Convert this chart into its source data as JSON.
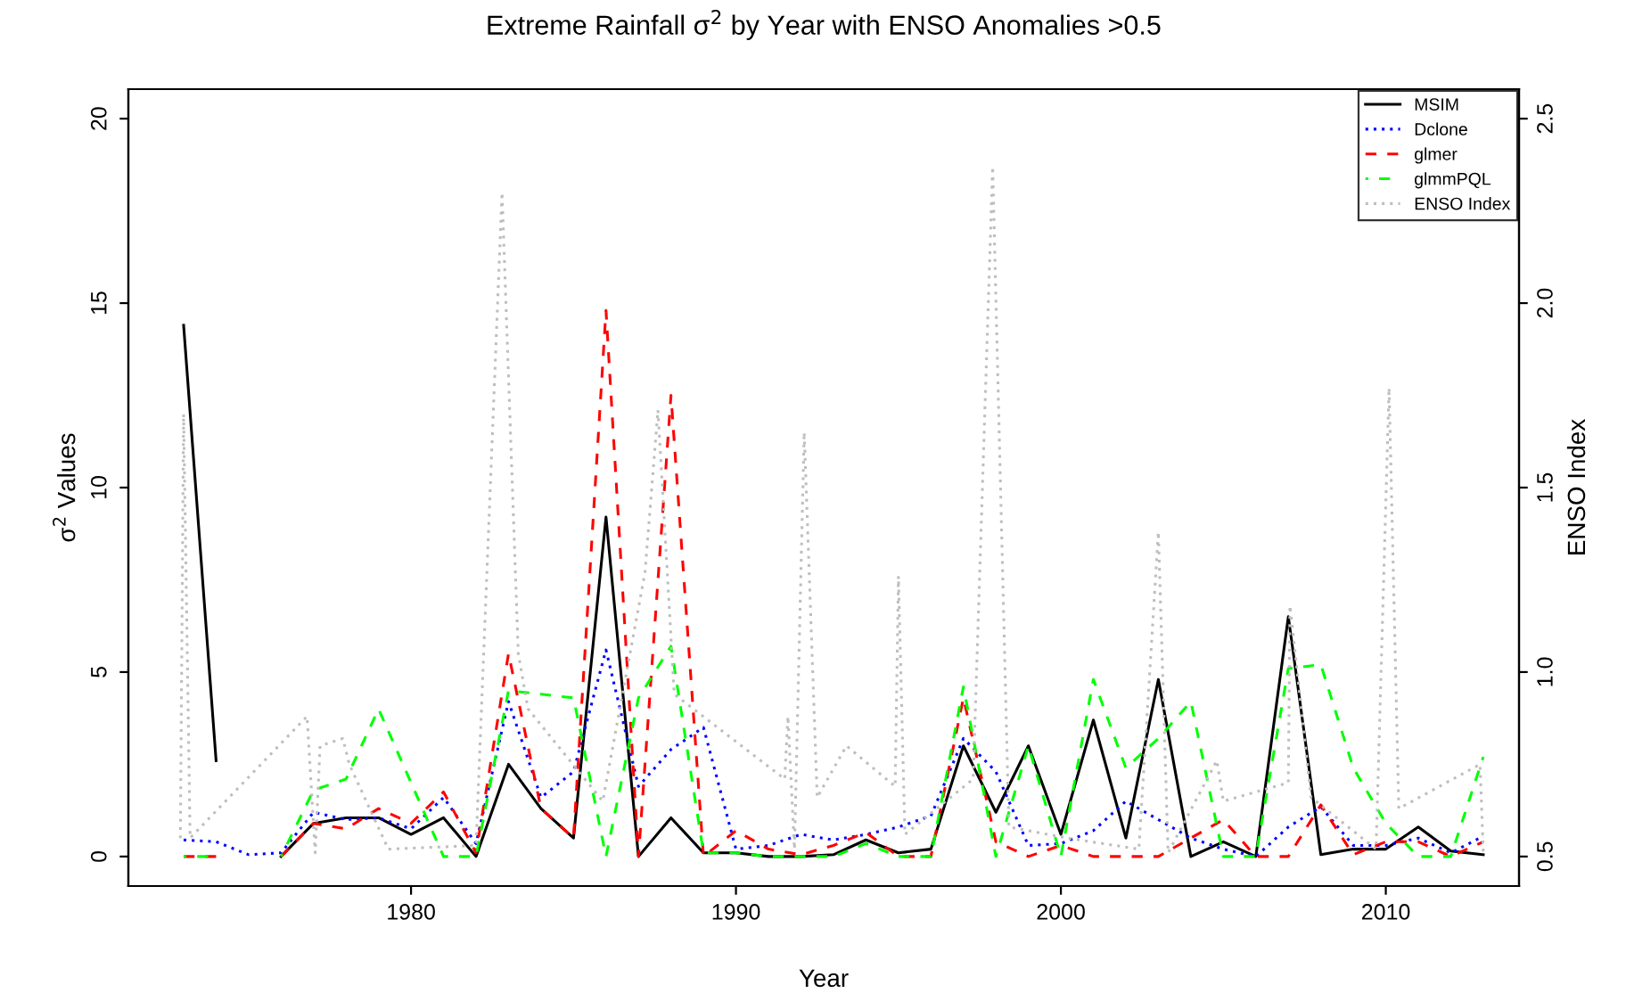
{
  "chart_data": {
    "type": "line",
    "title": "Extreme Rainfall σ$^{2}$ by Year with ENSO Anomalies >0.5",
    "xlabel": "Year",
    "ylabel": "σ$^{2}$ Values",
    "y2label": "ENSO Index",
    "x": [
      1973,
      1974,
      1975,
      1976,
      1977,
      1978,
      1979,
      1980,
      1981,
      1982,
      1983,
      1984,
      1985,
      1986,
      1987,
      1988,
      1989,
      1990,
      1991,
      1992,
      1993,
      1994,
      1995,
      1996,
      1997,
      1998,
      1999,
      2000,
      2001,
      2002,
      2003,
      2004,
      2005,
      2006,
      2007,
      2008,
      2009,
      2010,
      2011,
      2012,
      2013
    ],
    "series": [
      {
        "name": "MSIM",
        "color": "#000000",
        "line_style": "solid",
        "values": [
          14.4,
          2.6,
          null,
          0,
          0.9,
          1.05,
          1.05,
          0.6,
          1.05,
          0,
          2.5,
          1.3,
          0.5,
          9.2,
          0,
          1.05,
          0.1,
          0.1,
          0,
          0,
          0.05,
          0.45,
          0.1,
          0.2,
          3.0,
          1.2,
          3.0,
          0.6,
          3.7,
          0.5,
          4.8,
          0,
          0.4,
          0,
          6.5,
          0.05,
          0.2,
          0.2,
          0.8,
          0.15,
          0.05
        ]
      },
      {
        "name": "Dclone",
        "color": "#0000ff",
        "line_style": "dotted",
        "values": [
          0.45,
          0.4,
          0.05,
          0.1,
          1.2,
          1.0,
          1.05,
          0.75,
          1.6,
          0.35,
          4.2,
          1.6,
          2.3,
          5.6,
          1.9,
          2.9,
          3.5,
          0.2,
          0.3,
          0.6,
          0.45,
          0.6,
          0.8,
          1.1,
          3.2,
          2.3,
          0.3,
          0.35,
          0.7,
          1.5,
          1.0,
          0.5,
          0.2,
          0,
          0.8,
          1.35,
          0.3,
          0.3,
          0.5,
          0.1,
          0.55
        ]
      },
      {
        "name": "glmer",
        "color": "#ff0000",
        "line_style": "dashed",
        "values": [
          0,
          0,
          null,
          0,
          0.9,
          0.75,
          1.3,
          0.9,
          1.75,
          0.1,
          5.5,
          1.3,
          0.5,
          14.8,
          0,
          12.5,
          0,
          0.7,
          0.2,
          0.05,
          0.3,
          0.65,
          0,
          0,
          4.3,
          0.4,
          0,
          0.3,
          0,
          0,
          0,
          0.5,
          1.0,
          0,
          0,
          1.4,
          0.05,
          0.4,
          0.4,
          0,
          0.4
        ]
      },
      {
        "name": "glmmPQL",
        "color": "#00ff00",
        "line_style": "dashed",
        "values": [
          0,
          0,
          null,
          0,
          1.8,
          2.1,
          4.0,
          2.0,
          0,
          0,
          4.5,
          4.4,
          4.3,
          0,
          4.3,
          5.7,
          0.1,
          0.1,
          0,
          0,
          0,
          0.35,
          0,
          0,
          4.6,
          0,
          3.0,
          0,
          4.8,
          2.4,
          3.2,
          4.2,
          0,
          0,
          5.1,
          5.2,
          2.4,
          0.9,
          0,
          0,
          2.7
        ]
      },
      {
        "name": "ENSO Index",
        "color": "#bebebe",
        "line_style": "dotted",
        "axis": "y2",
        "x": [
          1972.9,
          1973.0,
          1973.2,
          1976.8,
          1977.05,
          1977.2,
          1977.9,
          1978.1,
          1979.3,
          1982.0,
          1982.8,
          1983.3,
          1983.6,
          1985.9,
          1987.2,
          1987.6,
          1988.1,
          1991.5,
          1991.6,
          1991.8,
          1992.1,
          1992.5,
          1993.4,
          1994.9,
          1995.0,
          1995.2,
          1997.3,
          1997.9,
          1998.4,
          2000.2,
          2002.4,
          2003.0,
          2003.3,
          2004.8,
          2005.0,
          2007.0,
          2007.05,
          2007.7,
          2009.7,
          2010.1,
          2010.4,
          2012.9,
          2013.0
        ],
        "values": [
          0.55,
          1.7,
          0.55,
          0.88,
          0.51,
          0.8,
          0.82,
          0.75,
          0.52,
          0.53,
          2.3,
          1.05,
          0.9,
          0.65,
          1.27,
          1.71,
          0.94,
          0.71,
          0.88,
          0.52,
          1.65,
          0.66,
          0.8,
          0.69,
          1.26,
          0.56,
          0.71,
          2.37,
          0.58,
          0.55,
          0.52,
          1.38,
          0.51,
          0.76,
          0.65,
          0.7,
          1.18,
          0.66,
          0.52,
          1.77,
          0.63,
          0.75,
          0.51
        ]
      }
    ],
    "xlim": [
      1971.3,
      2014.1
    ],
    "xticks": [
      1980,
      1990,
      2000,
      2010
    ],
    "ylim": [
      -0.8,
      20.8
    ],
    "yticks": [
      0,
      5,
      10,
      15,
      20
    ],
    "y2lim": [
      0.42,
      2.58
    ],
    "y2ticks": [
      0.5,
      {
        "value": 1,
        "label": "1.0"
      },
      1.5,
      {
        "value": 2,
        "label": "2.0"
      },
      2.5
    ],
    "legend": "top right",
    "grid": false
  }
}
